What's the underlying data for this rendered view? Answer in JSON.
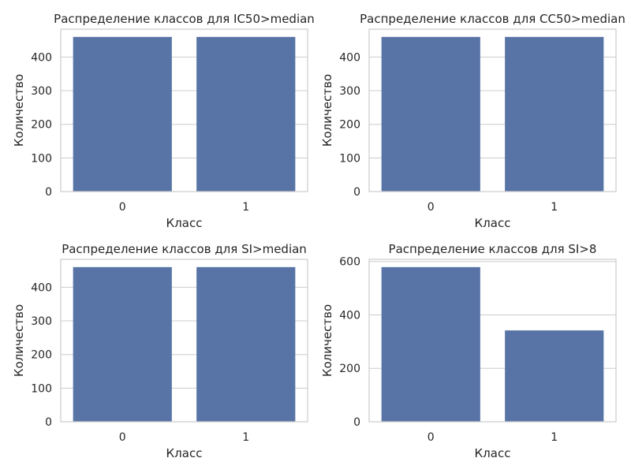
{
  "chart_data": [
    {
      "type": "bar",
      "title": "Распределение классов для IC50>median",
      "xlabel": "Класс",
      "ylabel": "Количество",
      "categories": [
        "0",
        "1"
      ],
      "values": [
        460,
        460
      ],
      "ylim": [
        0,
        483
      ],
      "yticks": [
        0,
        100,
        200,
        300,
        400
      ],
      "grid": true,
      "bar_color": "#5874a6"
    },
    {
      "type": "bar",
      "title": "Распределение классов для CC50>median",
      "xlabel": "Класс",
      "ylabel": "Количество",
      "categories": [
        "0",
        "1"
      ],
      "values": [
        460,
        460
      ],
      "ylim": [
        0,
        483
      ],
      "yticks": [
        0,
        100,
        200,
        300,
        400
      ],
      "grid": true,
      "bar_color": "#5874a6"
    },
    {
      "type": "bar",
      "title": "Распределение классов для SI>median",
      "xlabel": "Класс",
      "ylabel": "Количество",
      "categories": [
        "0",
        "1"
      ],
      "values": [
        460,
        460
      ],
      "ylim": [
        0,
        483
      ],
      "yticks": [
        0,
        100,
        200,
        300,
        400
      ],
      "grid": true,
      "bar_color": "#5874a6"
    },
    {
      "type": "bar",
      "title": "Распределение классов для SI>8",
      "xlabel": "Класс",
      "ylabel": "Количество",
      "categories": [
        "0",
        "1"
      ],
      "values": [
        579,
        342
      ],
      "ylim": [
        0,
        608
      ],
      "yticks": [
        0,
        200,
        400,
        600
      ],
      "grid": true,
      "bar_color": "#5874a6"
    }
  ]
}
